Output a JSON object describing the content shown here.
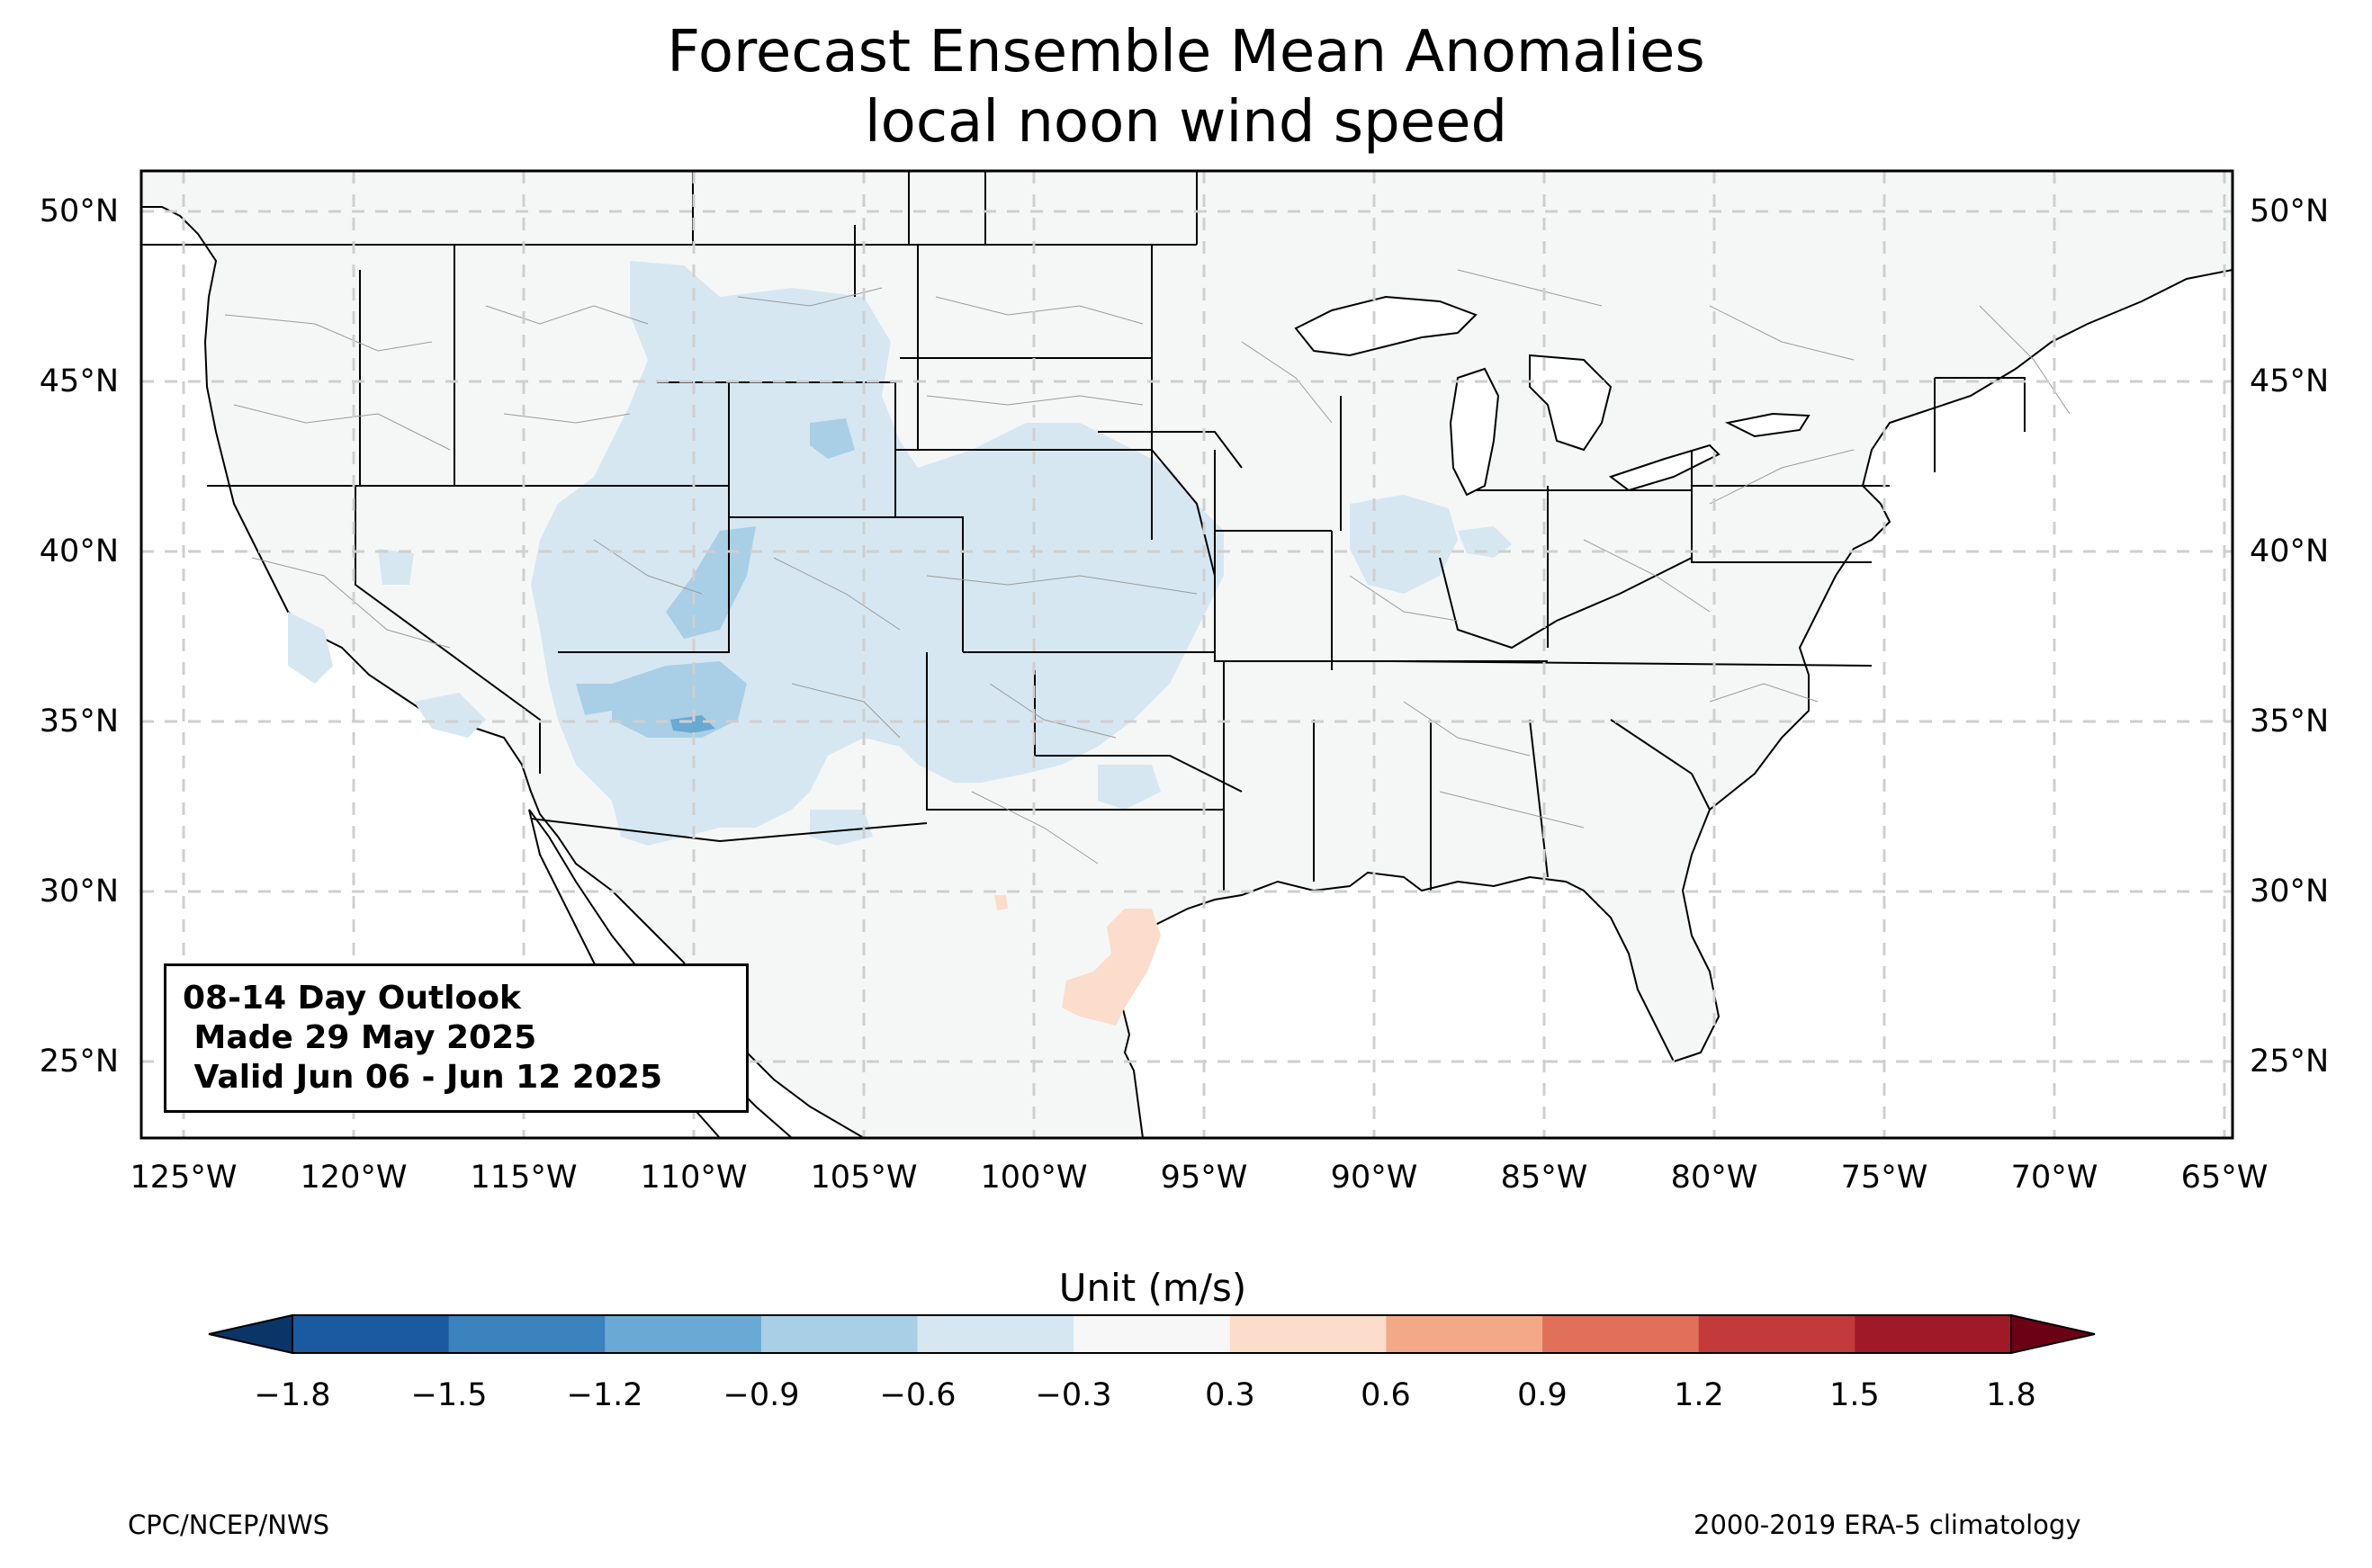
{
  "title": "Forecast Ensemble Mean Anomalies",
  "subtitle": "local noon wind speed",
  "outlook": {
    "line1": "08-14 Day Outlook",
    "line2": " Made 29 May 2025",
    "line3": " Valid Jun 06 - Jun 12 2025"
  },
  "lat_labels": [
    "50°N",
    "45°N",
    "40°N",
    "35°N",
    "30°N",
    "25°N"
  ],
  "lon_labels": [
    "125°W",
    "120°W",
    "115°W",
    "110°W",
    "105°W",
    "100°W",
    "95°W",
    "90°W",
    "85°W",
    "80°W",
    "75°W",
    "70°W",
    "65°W"
  ],
  "colorbar": {
    "label": "Unit (m/s)",
    "ticks": [
      "−1.8",
      "−1.5",
      "−1.2",
      "−0.9",
      "−0.6",
      "−0.3",
      "0.3",
      "0.6",
      "0.9",
      "1.2",
      "1.5",
      "1.8"
    ],
    "colors": [
      "#1b5aa0",
      "#3a83be",
      "#6aa9d4",
      "#a8cfe5",
      "#d6e7f1",
      "#f7f7f7",
      "#fcdccb",
      "#f3a988",
      "#e0705a",
      "#c23a3a",
      "#a01928"
    ],
    "under_color": "#0b3566",
    "over_color": "#6c0015"
  },
  "colors": {
    "land": "#f5f7f7",
    "anomaly_light_blue": "#d6e7f1",
    "anomaly_blue": "#a8cfe5",
    "anomaly_mid_blue": "#6aa9d4",
    "anomaly_peach": "#fcdccb"
  },
  "footer_left": "CPC/NCEP/NWS",
  "footer_right": "2000-2019 ERA-5 climatology"
}
